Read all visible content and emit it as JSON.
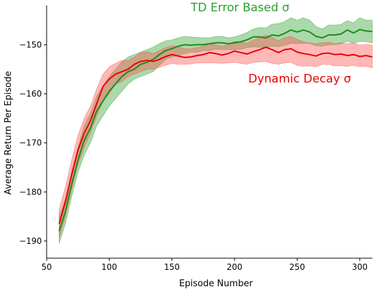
{
  "chart_data": {
    "type": "line",
    "title": "",
    "xlabel": "Episode Number",
    "ylabel": "Average Return Per Episode",
    "xlim": [
      50,
      310
    ],
    "ylim": [
      -193.5,
      -142
    ],
    "xticks": [
      50,
      100,
      150,
      200,
      250,
      300
    ],
    "yticks": [
      -190,
      -180,
      -170,
      -160,
      -150
    ],
    "grid": false,
    "legend": "none",
    "x": [
      60,
      65,
      70,
      75,
      80,
      85,
      90,
      95,
      100,
      105,
      110,
      115,
      120,
      125,
      130,
      135,
      140,
      145,
      150,
      155,
      160,
      165,
      170,
      175,
      180,
      185,
      190,
      195,
      200,
      205,
      210,
      215,
      220,
      225,
      230,
      235,
      240,
      245,
      250,
      255,
      260,
      265,
      270,
      275,
      280,
      285,
      290,
      295,
      300,
      305,
      310
    ],
    "series": [
      {
        "name": "TD Error Based σ",
        "color": "#1a8c1a",
        "band_color": "#2ca02c",
        "values": [
          -188.0,
          -184.0,
          -178.5,
          -173.5,
          -169.5,
          -167.0,
          -163.5,
          -161.5,
          -159.5,
          -158.0,
          -156.5,
          -155.5,
          -155.0,
          -154.0,
          -153.6,
          -153.0,
          -152.0,
          -151.2,
          -150.8,
          -150.3,
          -150.0,
          -150.1,
          -150.0,
          -150.0,
          -149.8,
          -149.6,
          -149.6,
          -149.8,
          -149.6,
          -149.4,
          -149.0,
          -148.4,
          -148.4,
          -148.6,
          -148.0,
          -148.2,
          -147.7,
          -147.0,
          -147.4,
          -147.0,
          -147.4,
          -148.3,
          -148.6,
          -148.0,
          -148.0,
          -147.8,
          -147.0,
          -147.6,
          -146.9,
          -147.2,
          -147.3
        ],
        "lower": [
          -190.5,
          -186.5,
          -181.0,
          -176.0,
          -172.5,
          -170.0,
          -166.5,
          -164.5,
          -162.5,
          -161.0,
          -159.5,
          -158.0,
          -157.0,
          -156.5,
          -156.0,
          -155.5,
          -154.2,
          -153.0,
          -152.5,
          -152.2,
          -151.8,
          -151.5,
          -151.5,
          -151.2,
          -151.2,
          -150.9,
          -151.0,
          -151.0,
          -151.0,
          -150.9,
          -150.6,
          -150.4,
          -150.5,
          -150.6,
          -150.3,
          -150.4,
          -150.1,
          -149.7,
          -149.8,
          -149.7,
          -149.7,
          -150.2,
          -150.3,
          -150.0,
          -150.0,
          -149.8,
          -149.3,
          -149.7,
          -149.3,
          -149.4,
          -149.6
        ],
        "upper": [
          -185.0,
          -181.5,
          -176.0,
          -171.0,
          -166.5,
          -164.0,
          -160.5,
          -158.5,
          -156.5,
          -155.0,
          -153.5,
          -152.5,
          -152.0,
          -151.5,
          -151.0,
          -150.5,
          -149.8,
          -149.2,
          -149.0,
          -148.6,
          -148.3,
          -148.4,
          -148.5,
          -148.6,
          -148.6,
          -148.3,
          -148.3,
          -148.6,
          -148.4,
          -148.0,
          -147.5,
          -146.8,
          -146.5,
          -146.6,
          -145.8,
          -145.7,
          -145.3,
          -144.5,
          -145.0,
          -144.5,
          -145.0,
          -146.3,
          -146.8,
          -146.0,
          -146.0,
          -145.9,
          -145.1,
          -145.5,
          -144.5,
          -145.0,
          -145.0
        ]
      },
      {
        "name": "Dynamic Decay σ",
        "color": "#e60000",
        "band_color": "#ff4d4d",
        "values": [
          -186.5,
          -182.0,
          -176.5,
          -171.5,
          -168.0,
          -165.5,
          -162.0,
          -158.5,
          -157.0,
          -156.0,
          -155.5,
          -155.0,
          -154.0,
          -153.4,
          -153.2,
          -153.4,
          -153.0,
          -152.4,
          -152.0,
          -152.3,
          -152.6,
          -152.5,
          -152.2,
          -152.0,
          -151.6,
          -151.8,
          -152.1,
          -151.8,
          -151.3,
          -151.6,
          -151.9,
          -151.4,
          -151.0,
          -150.5,
          -151.0,
          -151.6,
          -151.0,
          -150.8,
          -151.5,
          -151.8,
          -152.0,
          -152.3,
          -151.8,
          -151.7,
          -152.0,
          -151.9,
          -152.2,
          -152.0,
          -152.4,
          -152.2,
          -152.5
        ],
        "lower": [
          -189.5,
          -185.0,
          -179.5,
          -174.5,
          -171.0,
          -168.0,
          -164.5,
          -161.5,
          -160.0,
          -158.0,
          -157.5,
          -156.5,
          -156.0,
          -155.5,
          -155.0,
          -155.0,
          -154.6,
          -154.2,
          -153.8,
          -154.0,
          -154.0,
          -153.9,
          -153.7,
          -153.7,
          -153.7,
          -153.7,
          -153.8,
          -153.7,
          -153.6,
          -153.8,
          -154.0,
          -153.6,
          -153.5,
          -153.4,
          -153.8,
          -154.0,
          -153.7,
          -153.6,
          -154.2,
          -154.4,
          -154.3,
          -154.5,
          -154.0,
          -154.0,
          -154.3,
          -154.3,
          -154.4,
          -154.2,
          -154.5,
          -154.4,
          -154.7
        ],
        "upper": [
          -183.5,
          -179.0,
          -173.5,
          -168.5,
          -165.0,
          -162.5,
          -159.0,
          -156.0,
          -154.5,
          -153.8,
          -153.2,
          -153.2,
          -152.5,
          -151.6,
          -151.4,
          -151.8,
          -151.2,
          -150.6,
          -150.2,
          -150.4,
          -150.8,
          -150.8,
          -150.6,
          -150.3,
          -149.8,
          -150.0,
          -150.3,
          -150.0,
          -149.3,
          -149.4,
          -149.7,
          -149.1,
          -148.5,
          -148.0,
          -148.5,
          -149.2,
          -148.5,
          -148.3,
          -148.9,
          -149.4,
          -149.6,
          -149.8,
          -149.6,
          -149.5,
          -149.8,
          -149.6,
          -149.8,
          -149.6,
          -150.1,
          -149.9,
          -150.1
        ]
      }
    ],
    "annotations": [
      {
        "text": "TD Error Based σ",
        "x": 165,
        "y": -143.2,
        "color": "#2ca02c",
        "series": 0
      },
      {
        "text": "Dynamic Decay σ",
        "x": 211,
        "y": -157.7,
        "color": "#e60000",
        "series": 1
      }
    ]
  }
}
